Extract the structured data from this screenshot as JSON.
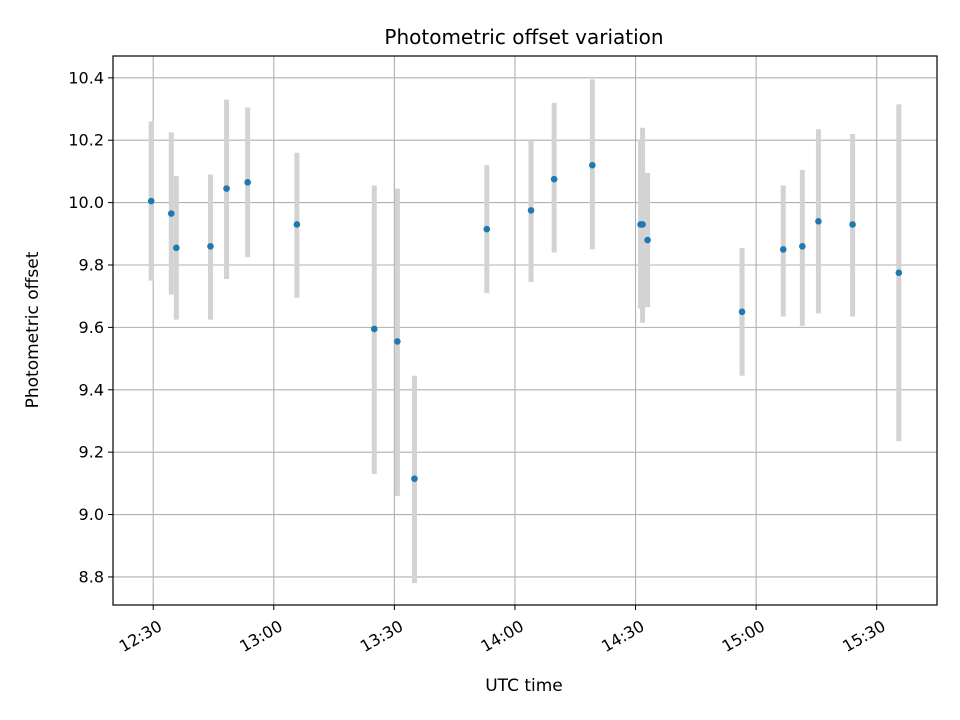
{
  "chart_data": {
    "type": "scatter",
    "title": "Photometric offset variation",
    "xlabel": "UTC time",
    "ylabel": "Photometric offset",
    "x_axis_kind": "time",
    "xlim": [
      "12:20",
      "15:45"
    ],
    "ylim": [
      8.71,
      10.47
    ],
    "x_ticks": [
      "12:30",
      "13:00",
      "13:30",
      "14:00",
      "14:30",
      "15:00",
      "15:30"
    ],
    "y_ticks": [
      8.8,
      9.0,
      9.2,
      9.4,
      9.6,
      9.8,
      10.0,
      10.2,
      10.4
    ],
    "y_tick_labels": [
      "8.8",
      "9.0",
      "9.2",
      "9.4",
      "9.6",
      "9.8",
      "10.0",
      "10.2",
      "10.4"
    ],
    "grid": true,
    "legend": "none",
    "colors": {
      "marker": "#1f77b4",
      "errorbar": "#d3d3d3",
      "grid": "#b0b0b0"
    },
    "series": [
      {
        "points": [
          {
            "x": "12:29:30",
            "y": 10.005,
            "ylow": 9.75,
            "yhigh": 10.26
          },
          {
            "x": "12:34:30",
            "y": 9.965,
            "ylow": 9.705,
            "yhigh": 10.225
          },
          {
            "x": "12:35:45",
            "y": 9.855,
            "ylow": 9.625,
            "yhigh": 10.085
          },
          {
            "x": "12:44:15",
            "y": 9.86,
            "ylow": 9.625,
            "yhigh": 10.09
          },
          {
            "x": "12:48:15",
            "y": 10.045,
            "ylow": 9.755,
            "yhigh": 10.33
          },
          {
            "x": "12:53:30",
            "y": 10.065,
            "ylow": 9.825,
            "yhigh": 10.305
          },
          {
            "x": "13:05:45",
            "y": 9.93,
            "ylow": 9.695,
            "yhigh": 10.16
          },
          {
            "x": "13:25:00",
            "y": 9.595,
            "ylow": 9.13,
            "yhigh": 10.055
          },
          {
            "x": "13:30:45",
            "y": 9.555,
            "ylow": 9.06,
            "yhigh": 10.045
          },
          {
            "x": "13:35:00",
            "y": 9.115,
            "ylow": 8.78,
            "yhigh": 9.445
          },
          {
            "x": "13:53:00",
            "y": 9.915,
            "ylow": 9.71,
            "yhigh": 10.12
          },
          {
            "x": "14:04:00",
            "y": 9.975,
            "ylow": 9.745,
            "yhigh": 10.2
          },
          {
            "x": "14:09:45",
            "y": 10.075,
            "ylow": 9.84,
            "yhigh": 10.32
          },
          {
            "x": "14:19:15",
            "y": 10.12,
            "ylow": 9.85,
            "yhigh": 10.395
          },
          {
            "x": "14:31:15",
            "y": 9.93,
            "ylow": 9.66,
            "yhigh": 10.2
          },
          {
            "x": "14:31:45",
            "y": 9.93,
            "ylow": 9.615,
            "yhigh": 10.24
          },
          {
            "x": "14:33:00",
            "y": 9.88,
            "ylow": 9.665,
            "yhigh": 10.095
          },
          {
            "x": "14:56:30",
            "y": 9.65,
            "ylow": 9.445,
            "yhigh": 9.855
          },
          {
            "x": "15:06:45",
            "y": 9.85,
            "ylow": 9.635,
            "yhigh": 10.055
          },
          {
            "x": "15:11:30",
            "y": 9.86,
            "ylow": 9.605,
            "yhigh": 10.105
          },
          {
            "x": "15:15:30",
            "y": 9.94,
            "ylow": 9.645,
            "yhigh": 10.235
          },
          {
            "x": "15:24:00",
            "y": 9.93,
            "ylow": 9.635,
            "yhigh": 10.22
          },
          {
            "x": "15:35:30",
            "y": 9.775,
            "ylow": 9.235,
            "yhigh": 10.315
          }
        ]
      }
    ]
  }
}
